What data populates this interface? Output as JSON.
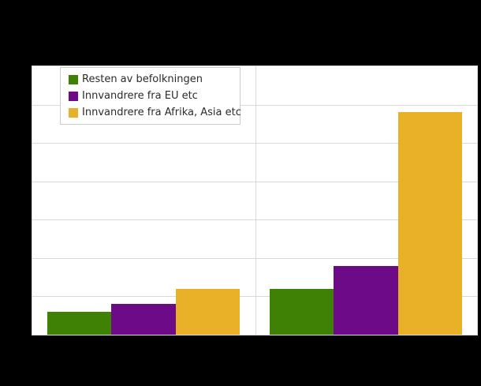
{
  "page": {
    "background": "#000000",
    "plot_background": "#ffffff",
    "grid_color": "#d9d9d9"
  },
  "legend": {
    "items": [
      {
        "label": "Resten av befolkningen",
        "color": "#3e8104",
        "icon": "legend-swatch-green"
      },
      {
        "label": "Innvandrere fra EU etc",
        "color": "#6c0a87",
        "icon": "legend-swatch-purple"
      },
      {
        "label": "Innvandrere fra Afrika, Asia etc",
        "color": "#e9b127",
        "icon": "legend-swatch-gold"
      }
    ]
  },
  "chart_data": {
    "type": "bar",
    "categories": [
      "",
      ""
    ],
    "series": [
      {
        "name": "Resten av befolkningen",
        "color": "#3e8104",
        "values": [
          3,
          6
        ]
      },
      {
        "name": "Innvandrere fra EU etc",
        "color": "#6c0a87",
        "values": [
          4,
          9
        ]
      },
      {
        "name": "Innvandrere fra Afrika, Asia etc",
        "color": "#e9b127",
        "values": [
          6,
          29
        ]
      }
    ],
    "title": "",
    "xlabel": "",
    "ylabel": "",
    "ylim": [
      0,
      35
    ],
    "ytick_step": 5,
    "grid": true,
    "legend_position": "top-left"
  }
}
